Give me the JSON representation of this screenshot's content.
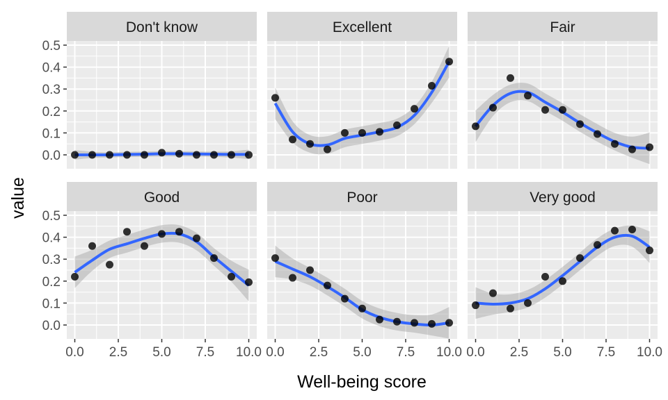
{
  "chart_data": {
    "type": "scatter",
    "facet_by": "category",
    "xlabel": "Well-being score",
    "ylabel": "value",
    "xlim": [
      0,
      10
    ],
    "ylim": [
      0,
      0.5
    ],
    "x_ticks": [
      0,
      2.5,
      5,
      7.5,
      10
    ],
    "x_tick_labels": [
      "0.0",
      "2.5",
      "5.0",
      "7.5",
      "10.0"
    ],
    "y_ticks": [
      0,
      0.1,
      0.2,
      0.3,
      0.4,
      0.5
    ],
    "y_tick_labels": [
      "0.0",
      "0.1",
      "0.2",
      "0.3",
      "0.4",
      "0.5"
    ],
    "grid": true,
    "smooth_color": "#3366FF",
    "band_color": "#999999",
    "point_color": "#000000",
    "panel_background": "#EBEBEB",
    "strip_background": "#D9D9D9",
    "x": [
      0,
      1,
      2,
      3,
      4,
      5,
      6,
      7,
      8,
      9,
      10
    ],
    "panels": [
      {
        "title": "Don't know",
        "values": [
          0.0,
          0.0,
          0.0,
          0.0,
          0.0,
          0.01,
          0.005,
          0.0,
          0.0,
          0.0,
          0.0
        ],
        "smooth": [
          0.0,
          0.0,
          0.0,
          0.002,
          0.003,
          0.005,
          0.005,
          0.004,
          0.003,
          0.002,
          0.002
        ]
      },
      {
        "title": "Excellent",
        "values": [
          0.26,
          0.07,
          0.05,
          0.025,
          0.1,
          0.1,
          0.105,
          0.135,
          0.21,
          0.315,
          0.425
        ],
        "smooth": [
          0.235,
          0.105,
          0.05,
          0.045,
          0.075,
          0.09,
          0.105,
          0.125,
          0.18,
          0.285,
          0.425
        ]
      },
      {
        "title": "Fair",
        "values": [
          0.13,
          0.215,
          0.35,
          0.27,
          0.205,
          0.205,
          0.14,
          0.095,
          0.05,
          0.025,
          0.035
        ],
        "smooth": [
          0.13,
          0.225,
          0.28,
          0.285,
          0.24,
          0.195,
          0.145,
          0.1,
          0.06,
          0.035,
          0.03
        ]
      },
      {
        "title": "Good",
        "values": [
          0.22,
          0.36,
          0.275,
          0.425,
          0.36,
          0.415,
          0.425,
          0.395,
          0.305,
          0.22,
          0.195
        ],
        "smooth": [
          0.24,
          0.295,
          0.345,
          0.37,
          0.395,
          0.415,
          0.415,
          0.38,
          0.31,
          0.245,
          0.18
        ]
      },
      {
        "title": "Poor",
        "values": [
          0.305,
          0.215,
          0.25,
          0.18,
          0.12,
          0.075,
          0.025,
          0.015,
          0.01,
          0.005,
          0.01
        ],
        "smooth": [
          0.29,
          0.255,
          0.22,
          0.175,
          0.125,
          0.07,
          0.035,
          0.015,
          0.005,
          0.0,
          0.01
        ]
      },
      {
        "title": "Very good",
        "values": [
          0.09,
          0.145,
          0.075,
          0.1,
          0.22,
          0.2,
          0.305,
          0.365,
          0.43,
          0.435,
          0.34
        ],
        "smooth": [
          0.1,
          0.095,
          0.1,
          0.12,
          0.165,
          0.225,
          0.29,
          0.355,
          0.4,
          0.405,
          0.355
        ]
      }
    ]
  }
}
